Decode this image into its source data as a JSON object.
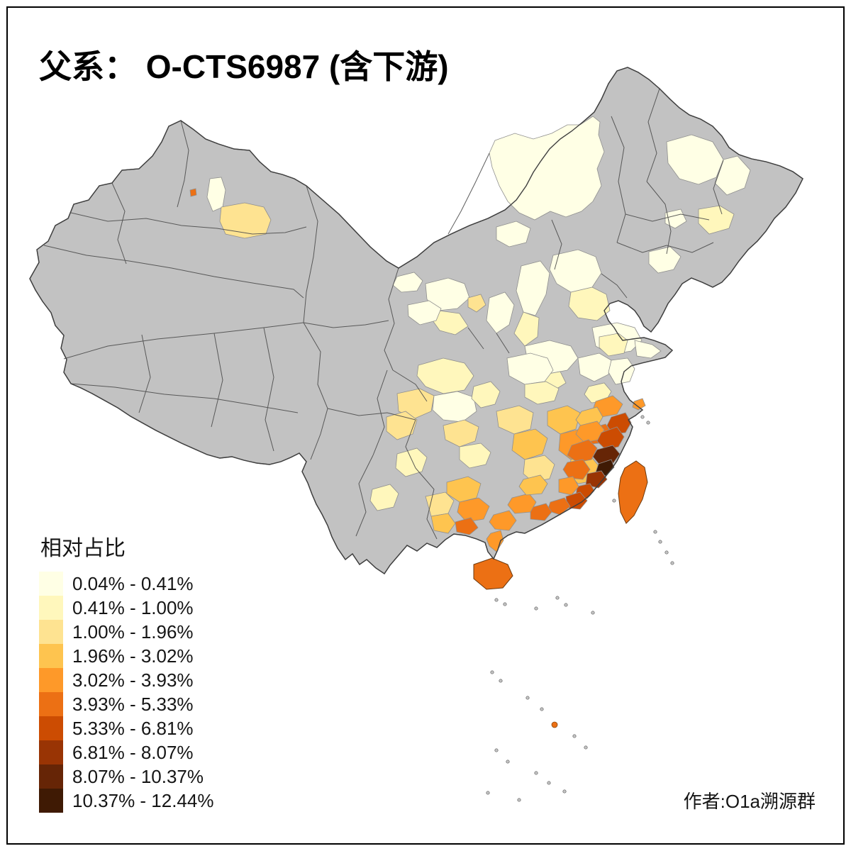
{
  "title": "父系： O-CTS6987 (含下游)",
  "credit": "作者:O1a溯源群",
  "legend": {
    "title": "相对占比",
    "entries": [
      {
        "label": "0.04% - 0.41%",
        "color": "#FFFFE5"
      },
      {
        "label": "0.41% - 1.00%",
        "color": "#FFF7BC"
      },
      {
        "label": "1.00% - 1.96%",
        "color": "#FEE391"
      },
      {
        "label": "1.96% - 3.02%",
        "color": "#FEC44F"
      },
      {
        "label": "3.02% - 3.93%",
        "color": "#FE9929"
      },
      {
        "label": "3.93% - 5.33%",
        "color": "#EC7014"
      },
      {
        "label": "5.33% - 6.81%",
        "color": "#CC4C02"
      },
      {
        "label": "6.81% - 8.07%",
        "color": "#993404"
      },
      {
        "label": "8.07% - 10.37%",
        "color": "#662506"
      },
      {
        "label": "10.37% - 12.44%",
        "color": "#3F1A04"
      }
    ],
    "no_data_color": "#C2C2C2",
    "border_color": "#4D4D4D"
  }
}
